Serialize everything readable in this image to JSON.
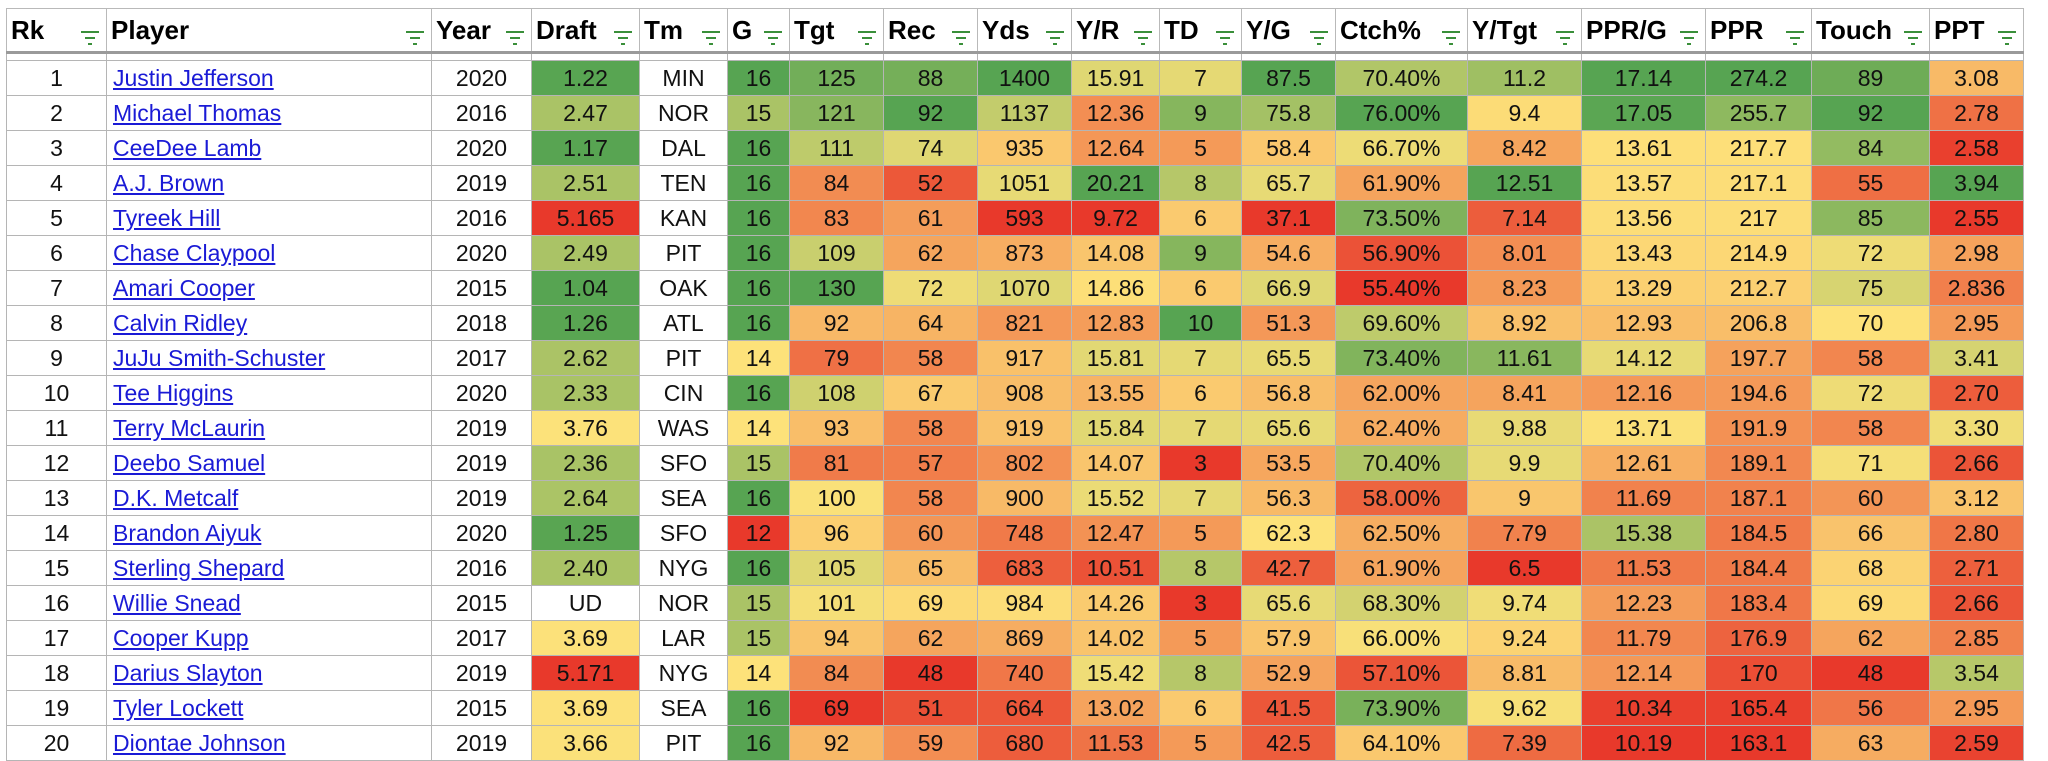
{
  "columns": [
    {
      "key": "rk",
      "label": "Rk"
    },
    {
      "key": "player",
      "label": "Player"
    },
    {
      "key": "year",
      "label": "Year"
    },
    {
      "key": "draft",
      "label": "Draft"
    },
    {
      "key": "tm",
      "label": "Tm"
    },
    {
      "key": "g",
      "label": "G"
    },
    {
      "key": "tgt",
      "label": "Tgt"
    },
    {
      "key": "rec",
      "label": "Rec"
    },
    {
      "key": "yds",
      "label": "Yds"
    },
    {
      "key": "yr",
      "label": "Y/R"
    },
    {
      "key": "td",
      "label": "TD"
    },
    {
      "key": "yg",
      "label": "Y/G"
    },
    {
      "key": "ctch",
      "label": "Ctch%"
    },
    {
      "key": "ytgt",
      "label": "Y/Tgt"
    },
    {
      "key": "pprg",
      "label": "PPR/G"
    },
    {
      "key": "ppr",
      "label": "PPR"
    },
    {
      "key": "touch",
      "label": "Touch"
    },
    {
      "key": "ppt",
      "label": "PPT"
    }
  ],
  "rows": [
    {
      "rk": "1",
      "player": "Justin Jefferson",
      "year": "2020",
      "draft": "1.22",
      "tm": "MIN",
      "g": "16",
      "tgt": "125",
      "rec": "88",
      "yds": "1400",
      "yr": "15.91",
      "td": "7",
      "yg": "87.5",
      "ctch": "70.40%",
      "ytgt": "11.2",
      "pprg": "17.14",
      "ppr": "274.2",
      "touch": "89",
      "ppt": "3.08"
    },
    {
      "rk": "2",
      "player": "Michael Thomas",
      "year": "2016",
      "draft": "2.47",
      "tm": "NOR",
      "g": "15",
      "tgt": "121",
      "rec": "92",
      "yds": "1137",
      "yr": "12.36",
      "td": "9",
      "yg": "75.8",
      "ctch": "76.00%",
      "ytgt": "9.4",
      "pprg": "17.05",
      "ppr": "255.7",
      "touch": "92",
      "ppt": "2.78"
    },
    {
      "rk": "3",
      "player": "CeeDee Lamb",
      "year": "2020",
      "draft": "1.17",
      "tm": "DAL",
      "g": "16",
      "tgt": "111",
      "rec": "74",
      "yds": "935",
      "yr": "12.64",
      "td": "5",
      "yg": "58.4",
      "ctch": "66.70%",
      "ytgt": "8.42",
      "pprg": "13.61",
      "ppr": "217.7",
      "touch": "84",
      "ppt": "2.58"
    },
    {
      "rk": "4",
      "player": "A.J. Brown",
      "year": "2019",
      "draft": "2.51",
      "tm": "TEN",
      "g": "16",
      "tgt": "84",
      "rec": "52",
      "yds": "1051",
      "yr": "20.21",
      "td": "8",
      "yg": "65.7",
      "ctch": "61.90%",
      "ytgt": "12.51",
      "pprg": "13.57",
      "ppr": "217.1",
      "touch": "55",
      "ppt": "3.94"
    },
    {
      "rk": "5",
      "player": "Tyreek Hill",
      "year": "2016",
      "draft": "5.165",
      "tm": "KAN",
      "g": "16",
      "tgt": "83",
      "rec": "61",
      "yds": "593",
      "yr": "9.72",
      "td": "6",
      "yg": "37.1",
      "ctch": "73.50%",
      "ytgt": "7.14",
      "pprg": "13.56",
      "ppr": "217",
      "touch": "85",
      "ppt": "2.55"
    },
    {
      "rk": "6",
      "player": "Chase Claypool",
      "year": "2020",
      "draft": "2.49",
      "tm": "PIT",
      "g": "16",
      "tgt": "109",
      "rec": "62",
      "yds": "873",
      "yr": "14.08",
      "td": "9",
      "yg": "54.6",
      "ctch": "56.90%",
      "ytgt": "8.01",
      "pprg": "13.43",
      "ppr": "214.9",
      "touch": "72",
      "ppt": "2.98"
    },
    {
      "rk": "7",
      "player": "Amari Cooper",
      "year": "2015",
      "draft": "1.04",
      "tm": "OAK",
      "g": "16",
      "tgt": "130",
      "rec": "72",
      "yds": "1070",
      "yr": "14.86",
      "td": "6",
      "yg": "66.9",
      "ctch": "55.40%",
      "ytgt": "8.23",
      "pprg": "13.29",
      "ppr": "212.7",
      "touch": "75",
      "ppt": "2.836"
    },
    {
      "rk": "8",
      "player": "Calvin Ridley",
      "year": "2018",
      "draft": "1.26",
      "tm": "ATL",
      "g": "16",
      "tgt": "92",
      "rec": "64",
      "yds": "821",
      "yr": "12.83",
      "td": "10",
      "yg": "51.3",
      "ctch": "69.60%",
      "ytgt": "8.92",
      "pprg": "12.93",
      "ppr": "206.8",
      "touch": "70",
      "ppt": "2.95"
    },
    {
      "rk": "9",
      "player": "JuJu Smith-Schuster",
      "year": "2017",
      "draft": "2.62",
      "tm": "PIT",
      "g": "14",
      "tgt": "79",
      "rec": "58",
      "yds": "917",
      "yr": "15.81",
      "td": "7",
      "yg": "65.5",
      "ctch": "73.40%",
      "ytgt": "11.61",
      "pprg": "14.12",
      "ppr": "197.7",
      "touch": "58",
      "ppt": "3.41"
    },
    {
      "rk": "10",
      "player": "Tee Higgins",
      "year": "2020",
      "draft": "2.33",
      "tm": "CIN",
      "g": "16",
      "tgt": "108",
      "rec": "67",
      "yds": "908",
      "yr": "13.55",
      "td": "6",
      "yg": "56.8",
      "ctch": "62.00%",
      "ytgt": "8.41",
      "pprg": "12.16",
      "ppr": "194.6",
      "touch": "72",
      "ppt": "2.70"
    },
    {
      "rk": "11",
      "player": "Terry McLaurin",
      "year": "2019",
      "draft": "3.76",
      "tm": "WAS",
      "g": "14",
      "tgt": "93",
      "rec": "58",
      "yds": "919",
      "yr": "15.84",
      "td": "7",
      "yg": "65.6",
      "ctch": "62.40%",
      "ytgt": "9.88",
      "pprg": "13.71",
      "ppr": "191.9",
      "touch": "58",
      "ppt": "3.30"
    },
    {
      "rk": "12",
      "player": "Deebo Samuel",
      "year": "2019",
      "draft": "2.36",
      "tm": "SFO",
      "g": "15",
      "tgt": "81",
      "rec": "57",
      "yds": "802",
      "yr": "14.07",
      "td": "3",
      "yg": "53.5",
      "ctch": "70.40%",
      "ytgt": "9.9",
      "pprg": "12.61",
      "ppr": "189.1",
      "touch": "71",
      "ppt": "2.66"
    },
    {
      "rk": "13",
      "player": "D.K. Metcalf",
      "year": "2019",
      "draft": "2.64",
      "tm": "SEA",
      "g": "16",
      "tgt": "100",
      "rec": "58",
      "yds": "900",
      "yr": "15.52",
      "td": "7",
      "yg": "56.3",
      "ctch": "58.00%",
      "ytgt": "9",
      "pprg": "11.69",
      "ppr": "187.1",
      "touch": "60",
      "ppt": "3.12"
    },
    {
      "rk": "14",
      "player": "Brandon Aiyuk",
      "year": "2020",
      "draft": "1.25",
      "tm": "SFO",
      "g": "12",
      "tgt": "96",
      "rec": "60",
      "yds": "748",
      "yr": "12.47",
      "td": "5",
      "yg": "62.3",
      "ctch": "62.50%",
      "ytgt": "7.79",
      "pprg": "15.38",
      "ppr": "184.5",
      "touch": "66",
      "ppt": "2.80"
    },
    {
      "rk": "15",
      "player": "Sterling Shepard",
      "year": "2016",
      "draft": "2.40",
      "tm": "NYG",
      "g": "16",
      "tgt": "105",
      "rec": "65",
      "yds": "683",
      "yr": "10.51",
      "td": "8",
      "yg": "42.7",
      "ctch": "61.90%",
      "ytgt": "6.5",
      "pprg": "11.53",
      "ppr": "184.4",
      "touch": "68",
      "ppt": "2.71"
    },
    {
      "rk": "16",
      "player": "Willie Snead",
      "year": "2015",
      "draft": "UD",
      "tm": "NOR",
      "g": "15",
      "tgt": "101",
      "rec": "69",
      "yds": "984",
      "yr": "14.26",
      "td": "3",
      "yg": "65.6",
      "ctch": "68.30%",
      "ytgt": "9.74",
      "pprg": "12.23",
      "ppr": "183.4",
      "touch": "69",
      "ppt": "2.66"
    },
    {
      "rk": "17",
      "player": "Cooper Kupp",
      "year": "2017",
      "draft": "3.69",
      "tm": "LAR",
      "g": "15",
      "tgt": "94",
      "rec": "62",
      "yds": "869",
      "yr": "14.02",
      "td": "5",
      "yg": "57.9",
      "ctch": "66.00%",
      "ytgt": "9.24",
      "pprg": "11.79",
      "ppr": "176.9",
      "touch": "62",
      "ppt": "2.85"
    },
    {
      "rk": "18",
      "player": "Darius Slayton",
      "year": "2019",
      "draft": "5.171",
      "tm": "NYG",
      "g": "14",
      "tgt": "84",
      "rec": "48",
      "yds": "740",
      "yr": "15.42",
      "td": "8",
      "yg": "52.9",
      "ctch": "57.10%",
      "ytgt": "8.81",
      "pprg": "12.14",
      "ppr": "170",
      "touch": "48",
      "ppt": "3.54"
    },
    {
      "rk": "19",
      "player": "Tyler Lockett",
      "year": "2015",
      "draft": "3.69",
      "tm": "SEA",
      "g": "16",
      "tgt": "69",
      "rec": "51",
      "yds": "664",
      "yr": "13.02",
      "td": "6",
      "yg": "41.5",
      "ctch": "73.90%",
      "ytgt": "9.62",
      "pprg": "10.34",
      "ppr": "165.4",
      "touch": "56",
      "ppt": "2.95"
    },
    {
      "rk": "20",
      "player": "Diontae Johnson",
      "year": "2019",
      "draft": "3.66",
      "tm": "PIT",
      "g": "16",
      "tgt": "92",
      "rec": "59",
      "yds": "680",
      "yr": "11.53",
      "td": "5",
      "yg": "42.5",
      "ctch": "64.10%",
      "ytgt": "7.39",
      "pprg": "10.19",
      "ppr": "163.1",
      "touch": "63",
      "ppt": "2.59"
    }
  ],
  "colors": {
    "scale_low": "#e8392b",
    "scale_mid": "#fde27a",
    "scale_high": "#57a452",
    "link": "#1a1ad6",
    "filter_icon": "#3a8f3a"
  },
  "icons": {
    "filter": "filter-icon"
  },
  "heatmap": {
    "draft": "low_good",
    "g": "high_good",
    "tgt": "high_good",
    "rec": "high_good",
    "yds": "high_good",
    "yr": "high_good",
    "td": "high_good",
    "yg": "high_good",
    "ctch": "high_good",
    "ytgt": "high_good",
    "pprg": "high_good",
    "ppr": "high_good",
    "touch": "high_good",
    "ppt": "high_good"
  }
}
